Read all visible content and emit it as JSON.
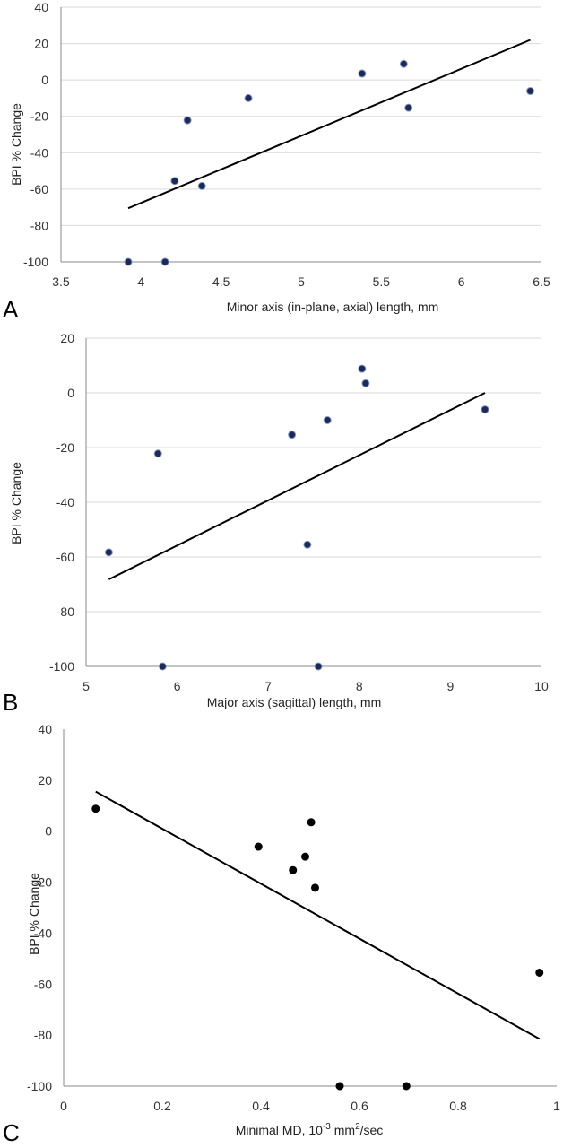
{
  "chart_data": [
    {
      "type": "scatter",
      "panel_label": "A",
      "xlabel": "Minor axis (in-plane, axial) length, mm",
      "ylabel": "BPI % Change",
      "xlim": [
        3.5,
        6.5
      ],
      "ylim": [
        -100,
        40
      ],
      "xticks": [
        3.5,
        4,
        4.5,
        5,
        5.5,
        6,
        6.5
      ],
      "yticks": [
        -100,
        -80,
        -60,
        -40,
        -20,
        0,
        20,
        40
      ],
      "xtick_labels": [
        "3.5",
        "4",
        "4.5",
        "5",
        "5.5",
        "6",
        "6.5"
      ],
      "ytick_labels": [
        "-100",
        "-80",
        "-60",
        "-40",
        "-20",
        "0",
        "20",
        "40"
      ],
      "grid": "horizontal",
      "point_style": "navy",
      "points": [
        {
          "x": 3.92,
          "y": -100
        },
        {
          "x": 4.15,
          "y": -100
        },
        {
          "x": 4.21,
          "y": -55.5
        },
        {
          "x": 4.29,
          "y": -22.2
        },
        {
          "x": 4.38,
          "y": -58.3
        },
        {
          "x": 4.67,
          "y": -10
        },
        {
          "x": 5.38,
          "y": 3.5
        },
        {
          "x": 5.64,
          "y": 8.8
        },
        {
          "x": 5.67,
          "y": -15.3
        },
        {
          "x": 6.43,
          "y": -6.1
        }
      ],
      "trendline": [
        {
          "x": 3.92,
          "y": -70.5
        },
        {
          "x": 6.43,
          "y": 22
        }
      ]
    },
    {
      "type": "scatter",
      "panel_label": "B",
      "xlabel": "Major axis (sagittal) length, mm",
      "ylabel": "BPI % Change",
      "xlim": [
        5,
        10
      ],
      "ylim": [
        -100,
        20
      ],
      "xticks": [
        5,
        6,
        7,
        8,
        9,
        10
      ],
      "yticks": [
        -100,
        -80,
        -60,
        -40,
        -20,
        0,
        20
      ],
      "xtick_labels": [
        "5",
        "6",
        "7",
        "8",
        "9",
        "10"
      ],
      "ytick_labels": [
        "-100",
        "-80",
        "-60",
        "-40",
        "-20",
        "0",
        "20"
      ],
      "grid": "horizontal",
      "point_style": "navy",
      "points": [
        {
          "x": 5.25,
          "y": -58.3
        },
        {
          "x": 5.79,
          "y": -22.2
        },
        {
          "x": 5.84,
          "y": -100
        },
        {
          "x": 7.26,
          "y": -15.3
        },
        {
          "x": 7.43,
          "y": -55.5
        },
        {
          "x": 7.55,
          "y": -100
        },
        {
          "x": 7.65,
          "y": -10
        },
        {
          "x": 8.03,
          "y": 8.8
        },
        {
          "x": 8.07,
          "y": 3.5
        },
        {
          "x": 9.38,
          "y": -6.1
        }
      ],
      "trendline": [
        {
          "x": 5.25,
          "y": -68.2
        },
        {
          "x": 9.38,
          "y": 0
        }
      ]
    },
    {
      "type": "scatter",
      "panel_label": "C",
      "xlabel_prefix": "Minimal MD, 10",
      "xlabel_sup": "-3",
      "xlabel_mid": " mm",
      "xlabel_sup2": "2",
      "xlabel_suffix": "/sec",
      "ylabel": "BPI % Change",
      "xlim": [
        0,
        1
      ],
      "ylim": [
        -100,
        40
      ],
      "xticks": [
        0,
        0.2,
        0.4,
        0.6,
        0.8,
        1
      ],
      "yticks": [
        -100,
        -80,
        -60,
        -40,
        -20,
        0,
        20,
        40
      ],
      "xtick_labels": [
        "0",
        "0.2",
        "0.4",
        "0.6",
        "0.8",
        "1"
      ],
      "ytick_labels": [
        "-100",
        "-80",
        "-60",
        "-40",
        "-20",
        "0",
        "20",
        "40"
      ],
      "grid": "none",
      "point_style": "black",
      "points": [
        {
          "x": 0.065,
          "y": 8.8
        },
        {
          "x": 0.395,
          "y": -6.1
        },
        {
          "x": 0.465,
          "y": -15.3
        },
        {
          "x": 0.49,
          "y": -10
        },
        {
          "x": 0.502,
          "y": 3.5
        },
        {
          "x": 0.51,
          "y": -22.2
        },
        {
          "x": 0.56,
          "y": -100
        },
        {
          "x": 0.695,
          "y": -100
        },
        {
          "x": 0.965,
          "y": -55.5
        }
      ],
      "trendline": [
        {
          "x": 0.065,
          "y": 15.5
        },
        {
          "x": 0.965,
          "y": -81.5
        }
      ]
    }
  ]
}
